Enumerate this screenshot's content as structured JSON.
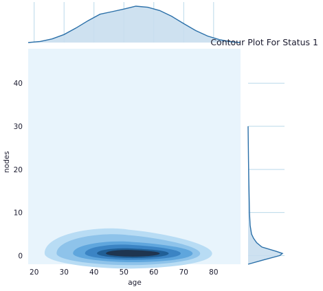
{
  "chart_data": {
    "type": "kde_joint",
    "title": "Contour Plot For Status 1",
    "xlabel": "age",
    "ylabel": "nodes",
    "xlim": [
      18,
      89
    ],
    "ylim": [
      -2,
      48
    ],
    "x_ticks": [
      20,
      30,
      40,
      50,
      60,
      70,
      80
    ],
    "y_ticks": [
      0,
      10,
      20,
      30,
      40
    ],
    "grid": true,
    "colors": {
      "background": "#e8f4fc",
      "grid": "#b8d8ea",
      "kde_line": "#2a6fa8",
      "kde_fill": "#c9deee",
      "contour_levels": [
        "#b8dcf4",
        "#8ec3ea",
        "#5fa6dd",
        "#3b84c4",
        "#205f96",
        "#1f3550"
      ]
    },
    "contour": {
      "center": [
        53,
        0.5
      ],
      "levels": [
        {
          "rx": 28,
          "ry": 2.6,
          "shape": "wide"
        },
        {
          "rx": 24,
          "ry": 2.0,
          "shape": "wide"
        },
        {
          "rx": 20,
          "ry": 1.5,
          "shape": "mid"
        },
        {
          "rx": 16,
          "ry": 1.1,
          "shape": "mid"
        },
        {
          "rx": 12,
          "ry": 0.8,
          "shape": "core"
        },
        {
          "rx": 9,
          "ry": 0.55,
          "shape": "core"
        }
      ]
    },
    "x_marginal": {
      "x": [
        18,
        22,
        26,
        30,
        34,
        38,
        42,
        46,
        50,
        54,
        58,
        62,
        66,
        70,
        74,
        78,
        82,
        86,
        89
      ],
      "density": [
        0.0,
        0.03,
        0.1,
        0.22,
        0.4,
        0.6,
        0.78,
        0.85,
        0.92,
        1.0,
        0.97,
        0.88,
        0.72,
        0.52,
        0.33,
        0.18,
        0.08,
        0.02,
        0.0
      ]
    },
    "y_marginal": {
      "y": [
        -2,
        -1,
        0,
        0.5,
        1,
        2,
        3,
        4,
        5,
        7,
        10,
        14,
        18,
        22,
        26,
        30
      ],
      "density": [
        0.0,
        0.45,
        0.92,
        1.0,
        0.82,
        0.4,
        0.25,
        0.16,
        0.1,
        0.06,
        0.04,
        0.03,
        0.02,
        0.012,
        0.005,
        0.0
      ]
    }
  }
}
